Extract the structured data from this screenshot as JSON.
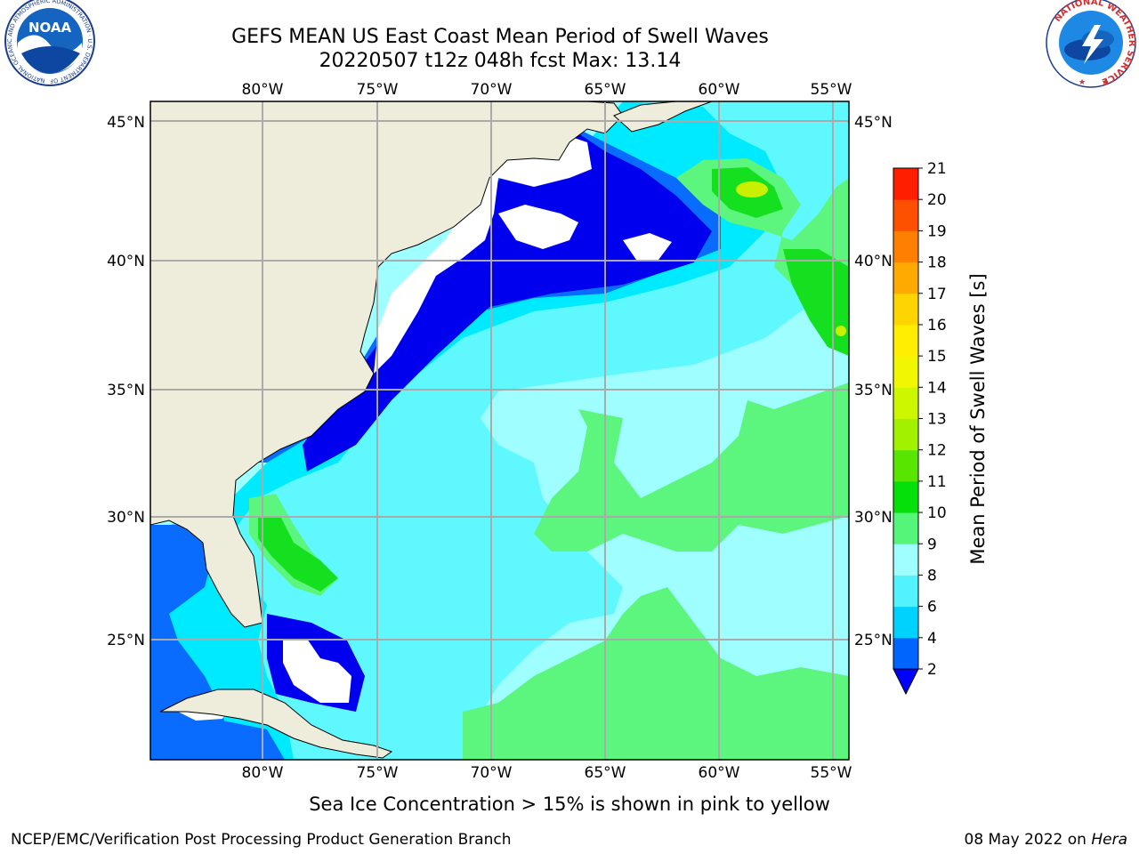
{
  "header": {
    "title_line1": "GEFS MEAN US East Coast Mean Period of Swell Waves",
    "title_line2": "20220507 t12z 048h fcst   Max: 13.14"
  },
  "logos": {
    "left": {
      "name": "NOAA",
      "ring_text": "NATIONAL OCEANIC AND ATMOSPHERIC ADMINISTRATION · U.S. DEPARTMENT OF COMMERCE"
    },
    "right": {
      "ring_text": "NATIONAL WEATHER SERVICE"
    }
  },
  "axes": {
    "lon_labels": [
      "80°W",
      "75°W",
      "70°W",
      "65°W",
      "60°W",
      "55°W"
    ],
    "lat_labels": [
      "45°N",
      "40°N",
      "35°N",
      "30°N",
      "25°N"
    ]
  },
  "colorbar": {
    "label": "Mean Period of Swell Waves [s]",
    "ticks": [
      "2",
      "4",
      "6",
      "8",
      "9",
      "10",
      "11",
      "12",
      "13",
      "14",
      "15",
      "16",
      "17",
      "18",
      "19",
      "20",
      "21"
    ],
    "colors": [
      "#0064ff",
      "#00d2ff",
      "#52f2ff",
      "#9ffeff",
      "#55f57a",
      "#06e00a",
      "#58e500",
      "#a2f200",
      "#cdf700",
      "#f0f700",
      "#ffee00",
      "#ffd500",
      "#ffaa00",
      "#ff7f00",
      "#ff5000",
      "#ff1e00",
      "#ff0000"
    ],
    "under_color": "#0000ff"
  },
  "map_colors": {
    "land": "#eeeddc",
    "no_data": "#ffffff",
    "dark_blue": "#0000ee",
    "blue": "#0a6cff",
    "cyan": "#00eaff",
    "light_cyan": "#5ff8ff",
    "pale_cyan": "#9ffeff",
    "green": "#5cf57d",
    "bright_green": "#14e020",
    "yellow_green": "#c8f000"
  },
  "footer": {
    "note": "Sea Ice Concentration > 15% is shown in pink to yellow",
    "credit": "NCEP/EMC/Verification Post Processing Product Generation Branch",
    "date": "08 May 2022 on ",
    "host": "Hera"
  }
}
